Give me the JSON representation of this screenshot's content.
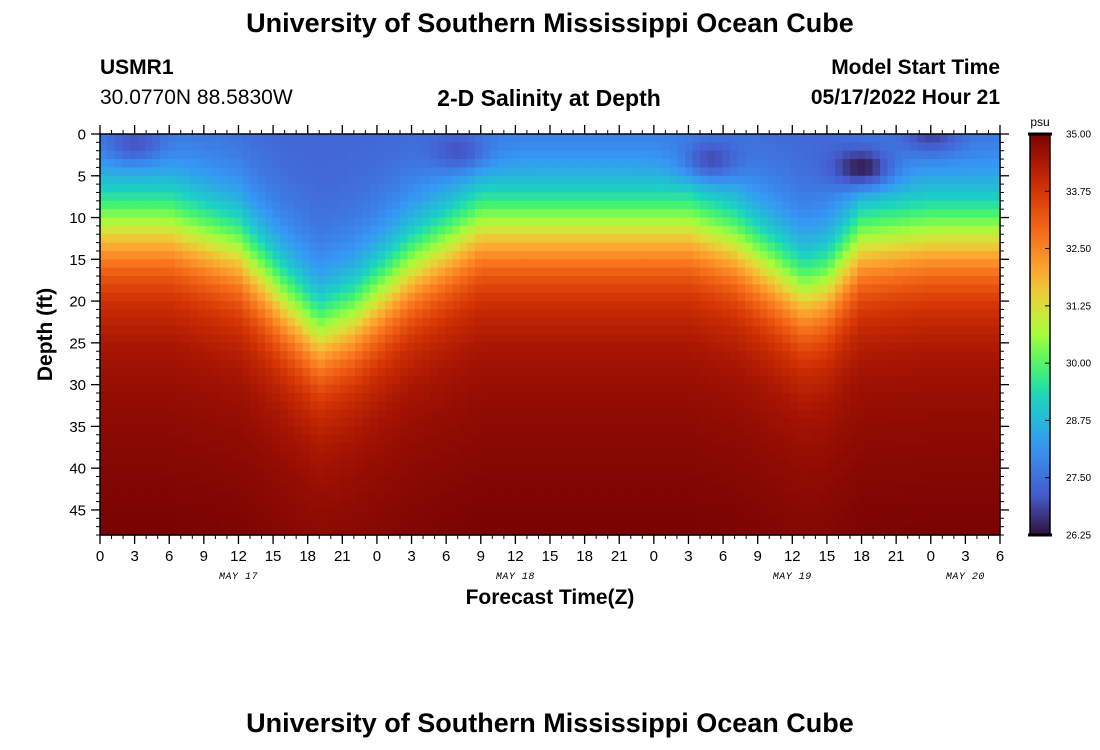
{
  "header": {
    "title": "University of Southern Mississippi Ocean Cube",
    "station_id": "USMR1",
    "station_coords": "30.0770N  88.5830W",
    "plot_title": "2-D Salinity at Depth",
    "model_start_label": "Model Start Time",
    "model_start_value": "05/17/2022 Hour 21"
  },
  "footer": {
    "title": "University of Southern Mississippi Ocean Cube"
  },
  "chart_data": {
    "type": "heatmap",
    "title": "2-D Salinity at Depth",
    "xlabel": "Forecast Time(Z)",
    "ylabel": "Depth (ft)",
    "x_unit": "hours since MAY 17 00Z",
    "x_range": [
      0,
      78
    ],
    "x_ticks": [
      0,
      3,
      6,
      9,
      12,
      15,
      18,
      21,
      24,
      27,
      30,
      33,
      36,
      39,
      42,
      45,
      48,
      51,
      54,
      57,
      60,
      63,
      66,
      69,
      72,
      75,
      78
    ],
    "x_tick_labels": [
      "0",
      "3",
      "6",
      "9",
      "12",
      "15",
      "18",
      "21",
      "0",
      "3",
      "6",
      "9",
      "12",
      "15",
      "18",
      "21",
      "0",
      "3",
      "6",
      "9",
      "12",
      "15",
      "18",
      "21",
      "0",
      "3",
      "6"
    ],
    "date_labels": [
      {
        "hour": 12,
        "label": "MAY 17"
      },
      {
        "hour": 36,
        "label": "MAY 18"
      },
      {
        "hour": 60,
        "label": "MAY 19"
      },
      {
        "hour": 75,
        "label": "MAY 20"
      }
    ],
    "y_range": [
      0,
      48
    ],
    "y_ticks": [
      0,
      5,
      10,
      15,
      20,
      25,
      30,
      35,
      40,
      45
    ],
    "colorbar": {
      "unit": "psu",
      "min": 26.25,
      "max": 35.0,
      "ticks": [
        "35.00",
        "33.75",
        "32.50",
        "31.25",
        "30.00",
        "28.75",
        "27.50",
        "26.25"
      ]
    },
    "halocline_depth_ft": {
      "hours": [
        0,
        6,
        12,
        16,
        19,
        22,
        27,
        33,
        39,
        45,
        51,
        55,
        58,
        61,
        63,
        66,
        72,
        78
      ],
      "values": [
        11,
        11,
        14,
        20,
        24,
        22,
        16,
        11,
        11,
        11,
        11,
        13,
        16,
        19,
        18,
        13,
        12,
        12
      ]
    },
    "deep_salinity_psu": 34.6,
    "bottom_salinity_psu": 35.0,
    "surface_salinity_psu": 27.3,
    "fresh_patches": [
      {
        "hour": 66,
        "depth_ft": 4,
        "salinity_psu": 26.3
      },
      {
        "hour": 53,
        "depth_ft": 3,
        "salinity_psu": 26.9
      },
      {
        "hour": 31,
        "depth_ft": 2,
        "salinity_psu": 27.0
      },
      {
        "hour": 3,
        "depth_ft": 1,
        "salinity_psu": 27.0
      },
      {
        "hour": 72,
        "depth_ft": 0,
        "salinity_psu": 26.8
      }
    ]
  }
}
